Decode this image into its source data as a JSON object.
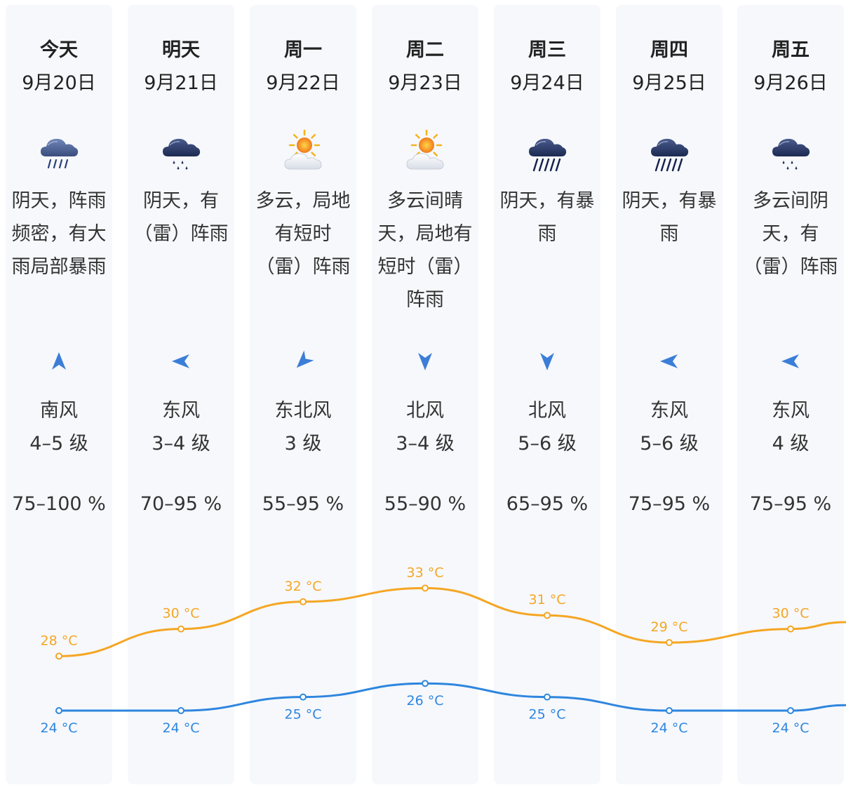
{
  "colors": {
    "high": "#f5a623",
    "low": "#2e86de",
    "column_bg": "#f6f8fc"
  },
  "days": [
    {
      "day": "今天",
      "date": "9月20日",
      "icon": "heavy-rain-icon",
      "desc": "阴天，阵雨频密，有大雨局部暴雨",
      "wind_dir": "南风",
      "wind_arrow": "arrow-up-icon",
      "wind_level": "4–5 级",
      "humidity": "75–100 %",
      "high_label": "28 °C",
      "low_label": "24 °C"
    },
    {
      "day": "明天",
      "date": "9月21日",
      "icon": "rain-icon",
      "desc": "阴天，有（雷）阵雨",
      "wind_dir": "东风",
      "wind_arrow": "arrow-left-icon",
      "wind_level": "3–4 级",
      "humidity": "70–95 %",
      "high_label": "30 °C",
      "low_label": "24 °C"
    },
    {
      "day": "周一",
      "date": "9月22日",
      "icon": "partly-cloudy-icon",
      "desc": "多云，局地有短时（雷）阵雨",
      "wind_dir": "东北风",
      "wind_arrow": "arrow-down-left-icon",
      "wind_level": "3 级",
      "humidity": "55–95 %",
      "high_label": "32 °C",
      "low_label": "25 °C"
    },
    {
      "day": "周二",
      "date": "9月23日",
      "icon": "partly-cloudy-icon",
      "desc": "多云间晴天，局地有短时（雷）阵雨",
      "wind_dir": "北风",
      "wind_arrow": "arrow-down-icon",
      "wind_level": "3–4 级",
      "humidity": "55–90 %",
      "high_label": "33 °C",
      "low_label": "26 °C"
    },
    {
      "day": "周三",
      "date": "9月24日",
      "icon": "storm-rain-icon",
      "desc": "阴天，有暴雨",
      "wind_dir": "北风",
      "wind_arrow": "arrow-down-icon",
      "wind_level": "5–6 级",
      "humidity": "65–95 %",
      "high_label": "31 °C",
      "low_label": "25 °C"
    },
    {
      "day": "周四",
      "date": "9月25日",
      "icon": "storm-rain-icon",
      "desc": "阴天，有暴雨",
      "wind_dir": "东风",
      "wind_arrow": "arrow-left-icon",
      "wind_level": "5–6 级",
      "humidity": "75–95 %",
      "high_label": "29 °C",
      "low_label": "24 °C"
    },
    {
      "day": "周五",
      "date": "9月26日",
      "icon": "rain-icon",
      "desc": "多云间阴天，有（雷）阵雨",
      "wind_dir": "东风",
      "wind_arrow": "arrow-left-icon",
      "wind_level": "4 级",
      "humidity": "75–95 %",
      "high_label": "30 °C",
      "low_label": "24 °C"
    }
  ],
  "chart_data": {
    "type": "line",
    "categories": [
      "9月20日",
      "9月21日",
      "9月22日",
      "9月23日",
      "9月24日",
      "9月25日",
      "9月26日"
    ],
    "series": [
      {
        "values": [
          28,
          30,
          32,
          33,
          31,
          29,
          30
        ]
      },
      {
        "values": [
          24,
          24,
          25,
          26,
          25,
          24,
          24
        ]
      }
    ],
    "unit": "°C",
    "grid": false,
    "legend": "none"
  }
}
